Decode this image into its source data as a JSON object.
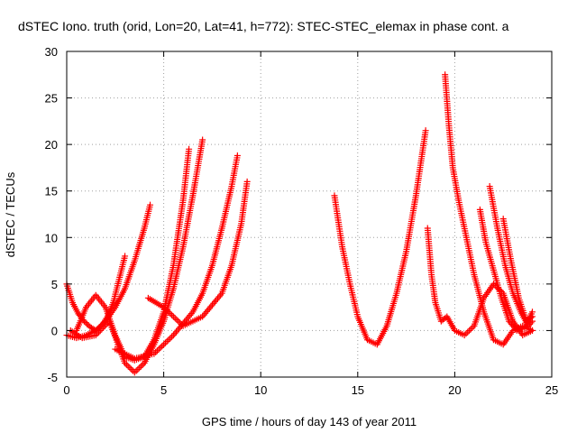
{
  "chart_data": {
    "type": "scatter",
    "title": "dSTEC Iono. truth (orid, Lon=20, Lat=41, h=772): STEC-STEC_elemax in phase cont. a",
    "xlabel": "GPS time / hours of day 143 of year 2011",
    "ylabel": "dSTEC  / TECUs",
    "xlim": [
      0,
      25
    ],
    "ylim": [
      -5,
      30
    ],
    "x_ticks": [
      0,
      5,
      10,
      15,
      20,
      25
    ],
    "y_ticks": [
      -5,
      0,
      5,
      10,
      15,
      20,
      25,
      30
    ],
    "x_tick_labels": [
      "0",
      "5",
      "10",
      "15",
      "20",
      "25"
    ],
    "y_tick_labels": [
      "-5",
      "0",
      "5",
      "10",
      "15",
      "20",
      "25",
      "30"
    ],
    "grid": true,
    "legend": "none",
    "marker": "plus",
    "color": "#ff0000",
    "series": [
      {
        "x": [
          0,
          0.3,
          0.6,
          0.9,
          1.2,
          1.5,
          1.8,
          2.1,
          2.4,
          2.7,
          3.0
        ],
        "y": [
          5.0,
          3.0,
          1.8,
          1.0,
          0.4,
          0.0,
          0.5,
          1.5,
          3.0,
          5.5,
          8.0
        ]
      },
      {
        "x": [
          0,
          0.5,
          1.0,
          1.5,
          2.0,
          2.5,
          3.0,
          3.5,
          4.0,
          4.3
        ],
        "y": [
          -0.5,
          -0.8,
          -0.5,
          0.0,
          1.0,
          2.5,
          4.5,
          7.5,
          11.0,
          13.5
        ]
      },
      {
        "x": [
          0.5,
          1.0,
          1.5,
          2.0,
          2.5,
          3.0,
          3.5,
          4.0,
          4.5,
          5.0,
          5.5,
          6.0,
          6.3
        ],
        "y": [
          0.0,
          2.5,
          3.8,
          2.5,
          -0.5,
          -2.8,
          -3.2,
          -2.8,
          -1.0,
          2.0,
          7.0,
          14.0,
          19.5
        ]
      },
      {
        "x": [
          0.2,
          0.8,
          1.5,
          2.2,
          3.0,
          3.5,
          4.0,
          4.5,
          5.0,
          5.5,
          6.0,
          6.5,
          7.0
        ],
        "y": [
          0.0,
          -0.8,
          -0.5,
          1.0,
          -3.5,
          -4.5,
          -3.5,
          -1.5,
          1.0,
          4.5,
          9.0,
          14.5,
          20.5
        ]
      },
      {
        "x": [
          2.5,
          3.5,
          4.5,
          5.5,
          6.5,
          7.0,
          7.5,
          8.0,
          8.5,
          8.8
        ],
        "y": [
          -2.0,
          -3.0,
          -2.5,
          -0.5,
          2.0,
          4.0,
          7.0,
          11.0,
          15.5,
          18.8
        ]
      },
      {
        "x": [
          4.2,
          5.0,
          6.0,
          7.0,
          8.0,
          8.5,
          9.0,
          9.3
        ],
        "y": [
          3.5,
          2.5,
          0.5,
          1.5,
          4.0,
          7.0,
          11.5,
          16.0
        ]
      },
      {
        "x": [
          13.8,
          14.2,
          14.6,
          15.0,
          15.5,
          16.0,
          16.5,
          17.0,
          17.5,
          18.0,
          18.5
        ],
        "y": [
          14.5,
          9.0,
          5.0,
          1.5,
          -1.0,
          -1.5,
          0.5,
          4.0,
          8.5,
          14.5,
          21.5
        ]
      },
      {
        "x": [
          18.6,
          18.8,
          19.0,
          19.3,
          19.6,
          20.0,
          20.5,
          21.0,
          21.5,
          22.0,
          22.5,
          23.0,
          23.5,
          24.0
        ],
        "y": [
          11.0,
          6.0,
          3.0,
          1.0,
          1.5,
          0.0,
          -0.5,
          0.5,
          3.5,
          5.0,
          4.0,
          1.0,
          -0.5,
          0.0
        ]
      },
      {
        "x": [
          19.5,
          19.7,
          19.9,
          20.2,
          20.6,
          21.0,
          21.5,
          22.0,
          22.5,
          23.0,
          23.5,
          24.0
        ],
        "y": [
          27.5,
          22.0,
          17.5,
          14.0,
          10.0,
          6.0,
          2.0,
          -1.0,
          -1.5,
          0.0,
          0.5,
          0.0
        ]
      },
      {
        "x": [
          21.3,
          21.6,
          22.0,
          22.4,
          22.8,
          23.2,
          23.6,
          24.0
        ],
        "y": [
          13.0,
          9.5,
          6.5,
          3.5,
          1.0,
          0.0,
          0.3,
          2.0
        ]
      },
      {
        "x": [
          21.8,
          22.2,
          22.6,
          23.0,
          23.4,
          23.8,
          24.0
        ],
        "y": [
          15.5,
          11.0,
          7.0,
          4.0,
          2.0,
          0.5,
          1.0
        ]
      },
      {
        "x": [
          22.5,
          22.9,
          23.3,
          23.7,
          24.0
        ],
        "y": [
          12.0,
          7.5,
          3.5,
          1.0,
          1.5
        ]
      }
    ]
  }
}
